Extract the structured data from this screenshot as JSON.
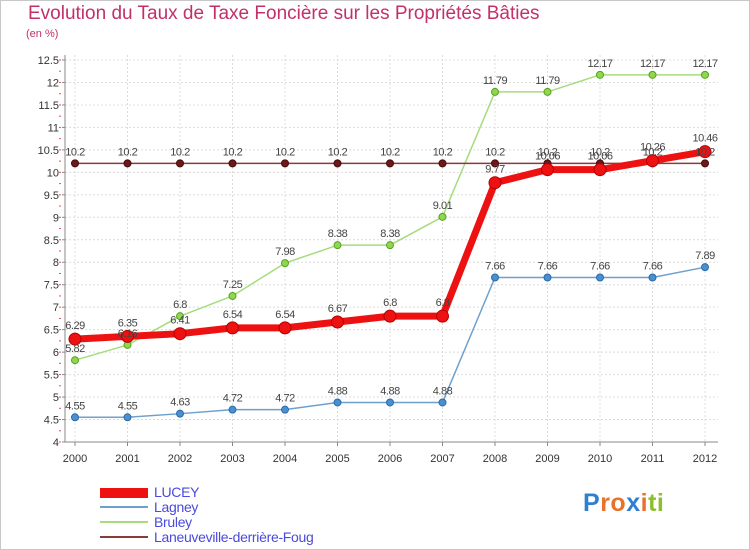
{
  "title": "Evolution du Taux de Taxe Foncière sur les Propriétés Bâties",
  "subtitle": "(en %)",
  "logo": {
    "text": "Proxiti",
    "letters": [
      "P",
      "r",
      "o",
      "x",
      "i",
      "t",
      "i"
    ],
    "colors": [
      "#2f7fd0",
      "#e8722a",
      "#e8722a",
      "#2f7fd0",
      "#e8722a",
      "#8cbf2a",
      "#8cbf2a"
    ]
  },
  "chart_data": {
    "type": "line",
    "title": "Evolution du Taux de Taxe Foncière sur les Propriétés Bâties",
    "ylabel": "(en %)",
    "xlabel": "",
    "x": [
      "2000",
      "2001",
      "2002",
      "2003",
      "2004",
      "2005",
      "2006",
      "2007",
      "2008",
      "2009",
      "2010",
      "2011",
      "2012"
    ],
    "ylim": [
      4,
      12.5
    ],
    "yticks": [
      "4",
      "4.5",
      "5",
      "5.5",
      "6",
      "6.5",
      "7",
      "7.5",
      "8",
      "8.5",
      "9",
      "9.5",
      "10",
      "10.5",
      "11",
      "11.5",
      "12",
      "12.5"
    ],
    "grid": true,
    "legend_position": "bottom-left",
    "series": [
      {
        "name": "LUCEY",
        "color": "#ee1111",
        "values": [
          6.29,
          6.35,
          6.41,
          6.54,
          6.54,
          6.67,
          6.8,
          6.8,
          9.77,
          10.06,
          10.06,
          10.26,
          10.46
        ],
        "labels": [
          "6.29",
          "6.35",
          "6.41",
          "6.54",
          "6.54",
          "6.67",
          "6.8",
          "6.8",
          "9.77",
          "10.06",
          "10.06",
          "10.26",
          "10.46"
        ]
      },
      {
        "name": "Lagney",
        "color": "#6fa0cc",
        "values": [
          4.55,
          4.55,
          4.63,
          4.72,
          4.72,
          4.88,
          4.88,
          4.88,
          7.66,
          7.66,
          7.66,
          7.66,
          7.89
        ],
        "labels": [
          "4.55",
          "4.55",
          "4.63",
          "4.72",
          "4.72",
          "4.88",
          "4.88",
          "4.88",
          "7.66",
          "7.66",
          "7.66",
          "7.66",
          "7.89"
        ]
      },
      {
        "name": "Bruley",
        "color": "#a6dc7c",
        "values": [
          5.82,
          6.16,
          6.8,
          7.25,
          7.98,
          8.38,
          8.38,
          9.01,
          11.79,
          11.79,
          12.17,
          12.17,
          12.17
        ],
        "labels": [
          "5.82",
          "6.16",
          "6.8",
          "7.25",
          "7.98",
          "8.38",
          "8.38",
          "9.01",
          "11.79",
          "11.79",
          "12.17",
          "12.17",
          "12.17"
        ]
      },
      {
        "name": "Laneuveville-derrière-Foug",
        "color": "#8b3a3a",
        "values": [
          10.2,
          10.2,
          10.2,
          10.2,
          10.2,
          10.2,
          10.2,
          10.2,
          10.2,
          10.2,
          10.2,
          10.2,
          10.2
        ],
        "labels": [
          "10.2",
          "10.2",
          "10.2",
          "10.2",
          "10.2",
          "10.2",
          "10.2",
          "10.2",
          "10.2",
          "10.2",
          "10.2",
          "10.2",
          "10.2"
        ]
      }
    ]
  }
}
